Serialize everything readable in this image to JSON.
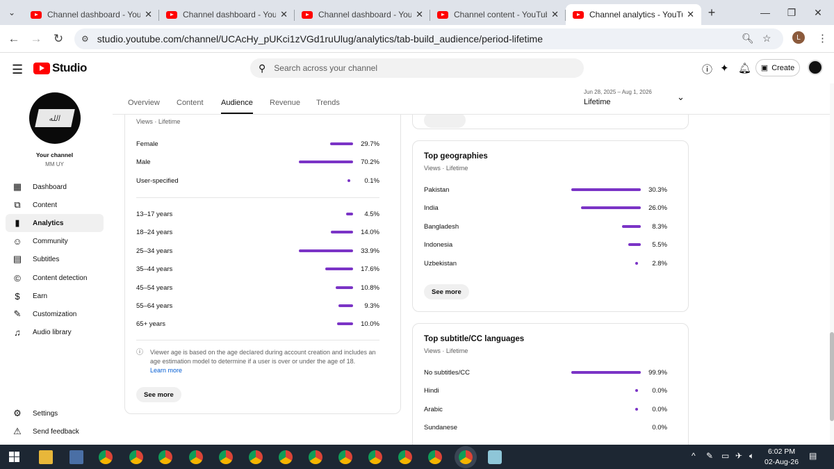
{
  "browser": {
    "tabs": [
      {
        "title": "Channel dashboard - YouTube Studio",
        "active": false
      },
      {
        "title": "Channel dashboard - YouTube Studio",
        "active": false
      },
      {
        "title": "Channel dashboard - YouTube Studio",
        "active": false
      },
      {
        "title": "Channel content - YouTube Studio",
        "active": false
      },
      {
        "title": "Channel analytics - YouTube Studio",
        "active": true
      }
    ],
    "url": "studio.youtube.com/channel/UCAcHy_pUKci1zVGd1ruUlug/analytics/tab-build_audience/period-lifetime",
    "profile_initial": "L"
  },
  "header": {
    "logo_text": "Studio",
    "search_placeholder": "Search across your channel",
    "create_label": "Create"
  },
  "sidebar": {
    "channel_label": "Your channel",
    "channel_name": "MM UY",
    "avatar_text": "الله",
    "items": [
      {
        "label": "Dashboard",
        "icon": "dashboard-icon"
      },
      {
        "label": "Content",
        "icon": "content-icon"
      },
      {
        "label": "Analytics",
        "icon": "analytics-icon"
      },
      {
        "label": "Community",
        "icon": "community-icon"
      },
      {
        "label": "Subtitles",
        "icon": "subtitles-icon"
      },
      {
        "label": "Content detection",
        "icon": "copyright-icon"
      },
      {
        "label": "Earn",
        "icon": "dollar-icon"
      },
      {
        "label": "Customization",
        "icon": "magic-wand-icon"
      },
      {
        "label": "Audio library",
        "icon": "audio-library-icon"
      }
    ],
    "settings_label": "Settings",
    "feedback_label": "Send feedback"
  },
  "tabs": {
    "overview": "Overview",
    "content": "Content",
    "audience": "Audience",
    "revenue": "Revenue",
    "trends": "Trends"
  },
  "period": {
    "range": "Jun 28, 2025 – Aug 1, 2026",
    "value": "Lifetime"
  },
  "demographics": {
    "subtitle": "Views · Lifetime",
    "gender": [
      {
        "label": "Female",
        "pct": "29.7%",
        "value": 29.7
      },
      {
        "label": "Male",
        "pct": "70.2%",
        "value": 70.2
      },
      {
        "label": "User-specified",
        "pct": "0.1%",
        "value": 0.1
      }
    ],
    "age": [
      {
        "label": "13–17 years",
        "pct": "4.5%",
        "value": 4.5
      },
      {
        "label": "18–24 years",
        "pct": "14.0%",
        "value": 14.0
      },
      {
        "label": "25–34 years",
        "pct": "33.9%",
        "value": 33.9
      },
      {
        "label": "35–44 years",
        "pct": "17.6%",
        "value": 17.6
      },
      {
        "label": "45–54 years",
        "pct": "10.8%",
        "value": 10.8
      },
      {
        "label": "55–64 years",
        "pct": "9.3%",
        "value": 9.3
      },
      {
        "label": "65+ years",
        "pct": "10.0%",
        "value": 10.0
      }
    ],
    "note": "Viewer age is based on the age declared during account creation and includes an age estimation model to determine if a user is over or under the age of 18.",
    "learn_more": "Learn more",
    "see_more": "See more"
  },
  "geographies": {
    "title": "Top geographies",
    "subtitle": "Views · Lifetime",
    "rows": [
      {
        "label": "Pakistan",
        "pct": "30.3%",
        "value": 30.3
      },
      {
        "label": "India",
        "pct": "26.0%",
        "value": 26.0
      },
      {
        "label": "Bangladesh",
        "pct": "8.3%",
        "value": 8.3
      },
      {
        "label": "Indonesia",
        "pct": "5.5%",
        "value": 5.5
      },
      {
        "label": "Uzbekistan",
        "pct": "2.8%",
        "value": 2.8
      }
    ],
    "see_more": "See more"
  },
  "subtitles": {
    "title": "Top subtitle/CC languages",
    "subtitle": "Views · Lifetime",
    "rows": [
      {
        "label": "No subtitles/CC",
        "pct": "99.9%",
        "value": 99.9
      },
      {
        "label": "Hindi",
        "pct": "0.0%",
        "value": 0.0
      },
      {
        "label": "Arabic",
        "pct": "0.0%",
        "value": 0.0
      },
      {
        "label": "Sundanese",
        "pct": "0.0%",
        "value": 0.0
      }
    ]
  },
  "taskbar": {
    "time": "6:02 PM",
    "date": "02-Aug-26"
  }
}
